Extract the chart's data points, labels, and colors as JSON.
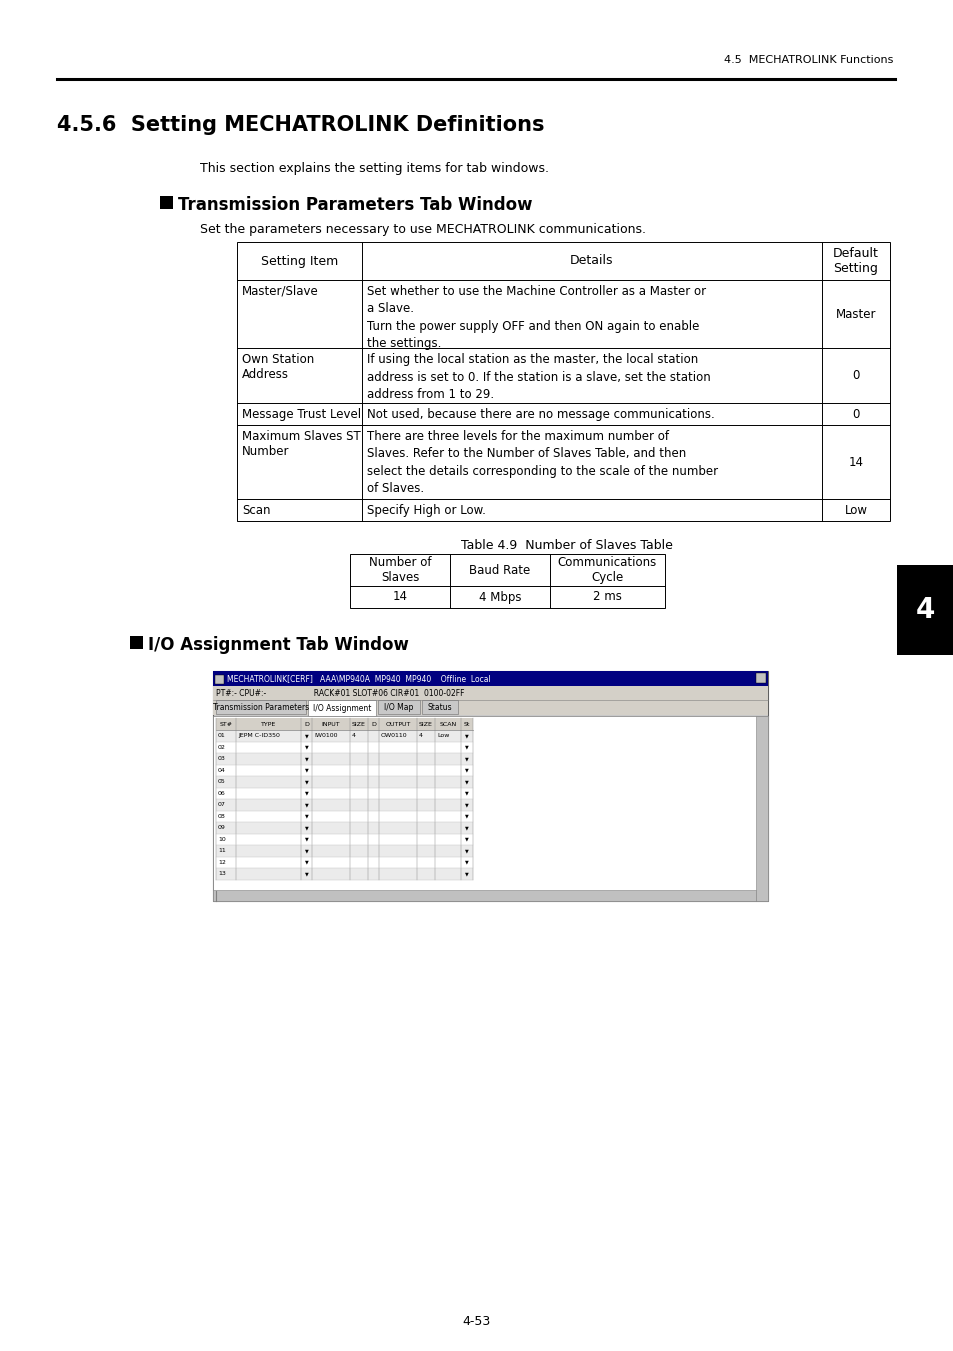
{
  "page_header": "4.5  MECHATROLINK Functions",
  "chapter_tab": "4",
  "section_title": "4.5.6  Setting MECHATROLINK Definitions",
  "intro_text": "This section explains the setting items for tab windows.",
  "section1_heading": "Transmission Parameters Tab Window",
  "section1_desc": "Set the parameters necessary to use MECHATROLINK communications.",
  "table1_headers": [
    "Setting Item",
    "Details",
    "Default\nSetting"
  ],
  "table1_rows": [
    [
      "Master/Slave",
      "Set whether to use the Machine Controller as a Master or\na Slave.\nTurn the power supply OFF and then ON again to enable\nthe settings.",
      "Master"
    ],
    [
      "Own Station\nAddress",
      "If using the local station as the master, the local station\naddress is set to 0. If the station is a slave, set the station\naddress from 1 to 29.",
      "0"
    ],
    [
      "Message Trust Level",
      "Not used, because there are no message communications.",
      "0"
    ],
    [
      "Maximum Slaves ST\nNumber",
      "There are three levels for the maximum number of\nSlaves. Refer to the Number of Slaves Table, and then\nselect the details corresponding to the scale of the number\nof Slaves.",
      "14"
    ],
    [
      "Scan",
      "Specify High or Low.",
      "Low"
    ]
  ],
  "table2_caption": "Table 4.9  Number of Slaves Table",
  "table2_headers": [
    "Number of\nSlaves",
    "Baud Rate",
    "Communications\nCycle"
  ],
  "table2_rows": [
    [
      "14",
      "4 Mbps",
      "2 ms"
    ]
  ],
  "section2_heading": "I/O Assignment Tab Window",
  "screenshot_title_bar": "MECHATROLINK[CERF]   AAA\\MP940A  MP940  MP940    Offline  Local",
  "screenshot_pt_bar": "PT#:- CPU#:-                    RACK#01 SLOT#06 CIR#01  0100-02FF",
  "screenshot_tabs": [
    "Transmission Parameters",
    "I/O Assignment",
    "I/O Map",
    "Status"
  ],
  "screenshot_active_tab": "I/O Assignment",
  "screenshot_col_headers": [
    "ST#",
    "TYPE",
    "D",
    "INPUT",
    "SIZE",
    "D",
    "OUTPUT",
    "SIZE",
    "SCAN",
    "St"
  ],
  "screenshot_rows": [
    [
      "01",
      "JEPM C-ID350",
      "v",
      "IW0100",
      "4",
      "",
      "OW0110",
      "4",
      "Low",
      "v"
    ],
    [
      "02",
      "",
      "v",
      "",
      "",
      "",
      "",
      "",
      "",
      "v"
    ],
    [
      "03",
      "",
      "v",
      "",
      "",
      "",
      "",
      "",
      "",
      "v"
    ],
    [
      "04",
      "",
      "v",
      "",
      "",
      "",
      "",
      "",
      "",
      "v"
    ],
    [
      "05",
      "",
      "v",
      "",
      "",
      "",
      "",
      "",
      "",
      "v"
    ],
    [
      "06",
      "",
      "v",
      "",
      "",
      "",
      "",
      "",
      "",
      "v"
    ],
    [
      "07",
      "",
      "v",
      "",
      "",
      "",
      "",
      "",
      "",
      "v"
    ],
    [
      "08",
      "",
      "v",
      "",
      "",
      "",
      "",
      "",
      "",
      "v"
    ],
    [
      "09",
      "",
      "v",
      "",
      "",
      "",
      "",
      "",
      "",
      "v"
    ],
    [
      "10",
      "",
      "v",
      "",
      "",
      "",
      "",
      "",
      "",
      "v"
    ],
    [
      "11",
      "",
      "v",
      "",
      "",
      "",
      "",
      "",
      "",
      "v"
    ],
    [
      "12",
      "",
      "v",
      "",
      "",
      "",
      "",
      "",
      "",
      "v"
    ],
    [
      "13",
      "",
      "v",
      "",
      "",
      "",
      "",
      "",
      "",
      "v"
    ]
  ],
  "page_number": "4-53",
  "bg_color": "#ffffff"
}
